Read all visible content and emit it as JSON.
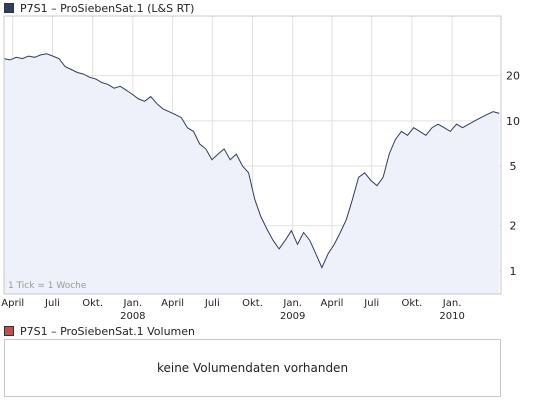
{
  "header": {
    "title": "P7S1 – ProSiebenSat.1 (L&S RT)",
    "swatch_color": "#2e3e5c"
  },
  "volume": {
    "title": "P7S1 – ProSiebenSat.1 Volumen",
    "swatch_color": "#c0504d",
    "empty_message": "keine Volumendaten vorhanden"
  },
  "chart_data": {
    "type": "line",
    "title": "P7S1 – ProSiebenSat.1 (L&S RT)",
    "note": "1 Tick = 1 Woche",
    "y_scale": "log",
    "ylim": [
      0.7,
      50
    ],
    "y_ticks": [
      {
        "value": 1,
        "label": "1"
      },
      {
        "value": 2,
        "label": "2"
      },
      {
        "value": 5,
        "label": "5"
      },
      {
        "value": 10,
        "label": "10"
      },
      {
        "value": 20,
        "label": "20"
      }
    ],
    "x_range": [
      "2007-03-12",
      "2010-04-23"
    ],
    "x_ticks": [
      {
        "date": "2007-04-01",
        "label": "April",
        "year": ""
      },
      {
        "date": "2007-07-01",
        "label": "Juli",
        "year": ""
      },
      {
        "date": "2007-10-01",
        "label": "Okt.",
        "year": ""
      },
      {
        "date": "2008-01-01",
        "label": "Jan.",
        "year": "2008"
      },
      {
        "date": "2008-04-01",
        "label": "April",
        "year": ""
      },
      {
        "date": "2008-07-01",
        "label": "Juli",
        "year": ""
      },
      {
        "date": "2008-10-01",
        "label": "Okt.",
        "year": ""
      },
      {
        "date": "2009-01-01",
        "label": "Jan.",
        "year": "2009"
      },
      {
        "date": "2009-04-01",
        "label": "April",
        "year": ""
      },
      {
        "date": "2009-07-01",
        "label": "Juli",
        "year": ""
      },
      {
        "date": "2009-10-01",
        "label": "Okt.",
        "year": ""
      },
      {
        "date": "2010-01-01",
        "label": "Jan.",
        "year": "2010"
      }
    ],
    "grid": true,
    "colors": {
      "line": "#2e3e5c",
      "fill": "#eef1fa",
      "grid": "#e2e2e2",
      "frame": "#c8c8c8"
    },
    "series": [
      {
        "x": [
          "2007-03-12",
          "2007-03-26",
          "2007-04-09",
          "2007-04-23",
          "2007-05-07",
          "2007-05-21",
          "2007-06-04",
          "2007-06-18",
          "2007-07-02",
          "2007-07-16",
          "2007-07-30",
          "2007-08-13",
          "2007-08-27",
          "2007-09-10",
          "2007-09-24",
          "2007-10-08",
          "2007-10-22",
          "2007-11-05",
          "2007-11-19",
          "2007-12-03",
          "2007-12-17",
          "2007-12-31",
          "2008-01-14",
          "2008-01-28",
          "2008-02-11",
          "2008-02-25",
          "2008-03-10",
          "2008-03-24",
          "2008-04-07",
          "2008-04-21",
          "2008-05-05",
          "2008-05-19",
          "2008-06-02",
          "2008-06-16",
          "2008-06-30",
          "2008-07-14",
          "2008-07-28",
          "2008-08-11",
          "2008-08-25",
          "2008-09-08",
          "2008-09-22",
          "2008-10-06",
          "2008-10-20",
          "2008-11-03",
          "2008-11-17",
          "2008-12-01",
          "2008-12-15",
          "2008-12-29",
          "2009-01-12",
          "2009-01-26",
          "2009-02-09",
          "2009-02-23",
          "2009-03-09",
          "2009-03-23",
          "2009-04-06",
          "2009-04-20",
          "2009-05-04",
          "2009-05-18",
          "2009-06-01",
          "2009-06-15",
          "2009-06-29",
          "2009-07-13",
          "2009-07-27",
          "2009-08-10",
          "2009-08-24",
          "2009-09-07",
          "2009-09-21",
          "2009-10-05",
          "2009-10-19",
          "2009-11-02",
          "2009-11-16",
          "2009-11-30",
          "2009-12-14",
          "2009-12-28",
          "2010-01-11",
          "2010-01-25",
          "2010-02-08",
          "2010-02-22",
          "2010-03-08",
          "2010-03-22",
          "2010-04-05",
          "2010-04-19"
        ],
        "values": [
          26.0,
          25.5,
          26.5,
          26.0,
          27.0,
          26.5,
          27.5,
          28.0,
          27.0,
          26.0,
          23.0,
          22.0,
          21.0,
          20.5,
          19.5,
          19.0,
          18.0,
          17.5,
          16.5,
          17.0,
          16.0,
          15.0,
          14.0,
          13.5,
          14.5,
          13.0,
          12.0,
          11.5,
          11.0,
          10.5,
          9.0,
          8.5,
          7.0,
          6.5,
          5.5,
          6.0,
          6.5,
          5.5,
          6.0,
          5.0,
          4.5,
          3.0,
          2.3,
          1.9,
          1.6,
          1.4,
          1.6,
          1.85,
          1.5,
          1.8,
          1.6,
          1.3,
          1.05,
          1.3,
          1.5,
          1.8,
          2.2,
          3.0,
          4.2,
          4.5,
          4.0,
          3.7,
          4.2,
          6.0,
          7.5,
          8.5,
          8.0,
          9.0,
          8.5,
          8.0,
          9.0,
          9.5,
          9.0,
          8.5,
          9.5,
          9.0,
          9.5,
          10.0,
          10.5,
          11.0,
          11.5,
          11.2
        ]
      }
    ]
  }
}
